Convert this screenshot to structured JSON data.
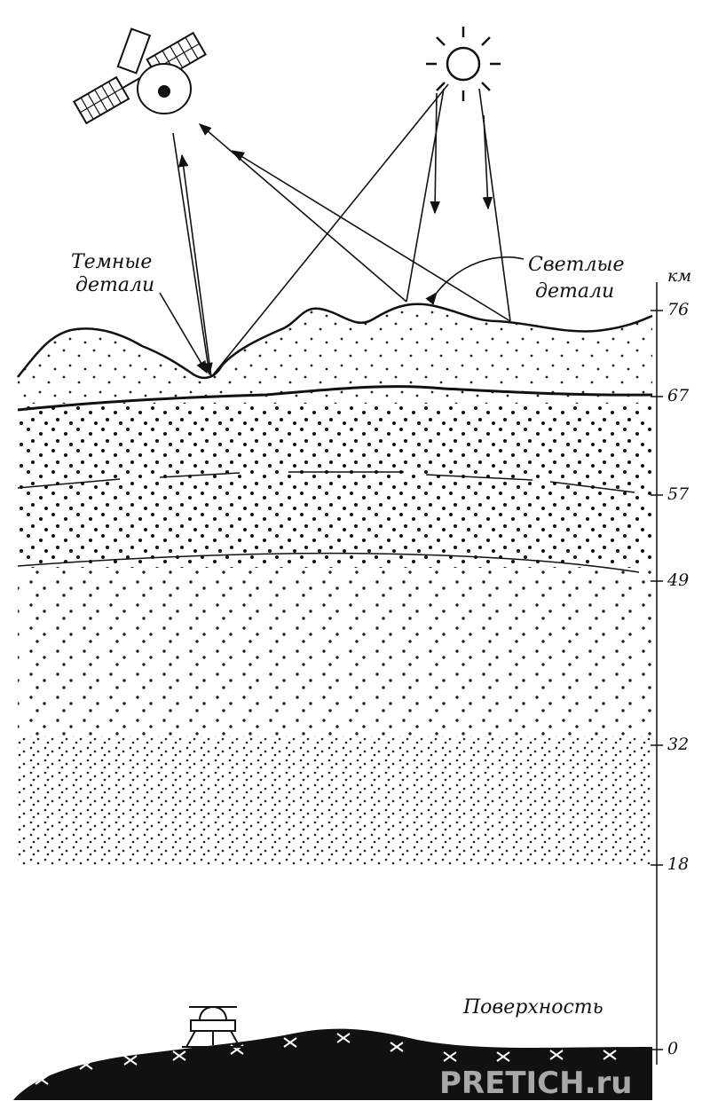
{
  "annotations": {
    "dark_details": [
      "Темные",
      "детали"
    ],
    "light_details": [
      "Светлые",
      "детали"
    ],
    "surface": "Поверхность"
  },
  "scale": {
    "unit": "км",
    "ticks": [
      76,
      67,
      57,
      49,
      32,
      18,
      0
    ]
  },
  "watermark": "PRETICH.ru"
}
